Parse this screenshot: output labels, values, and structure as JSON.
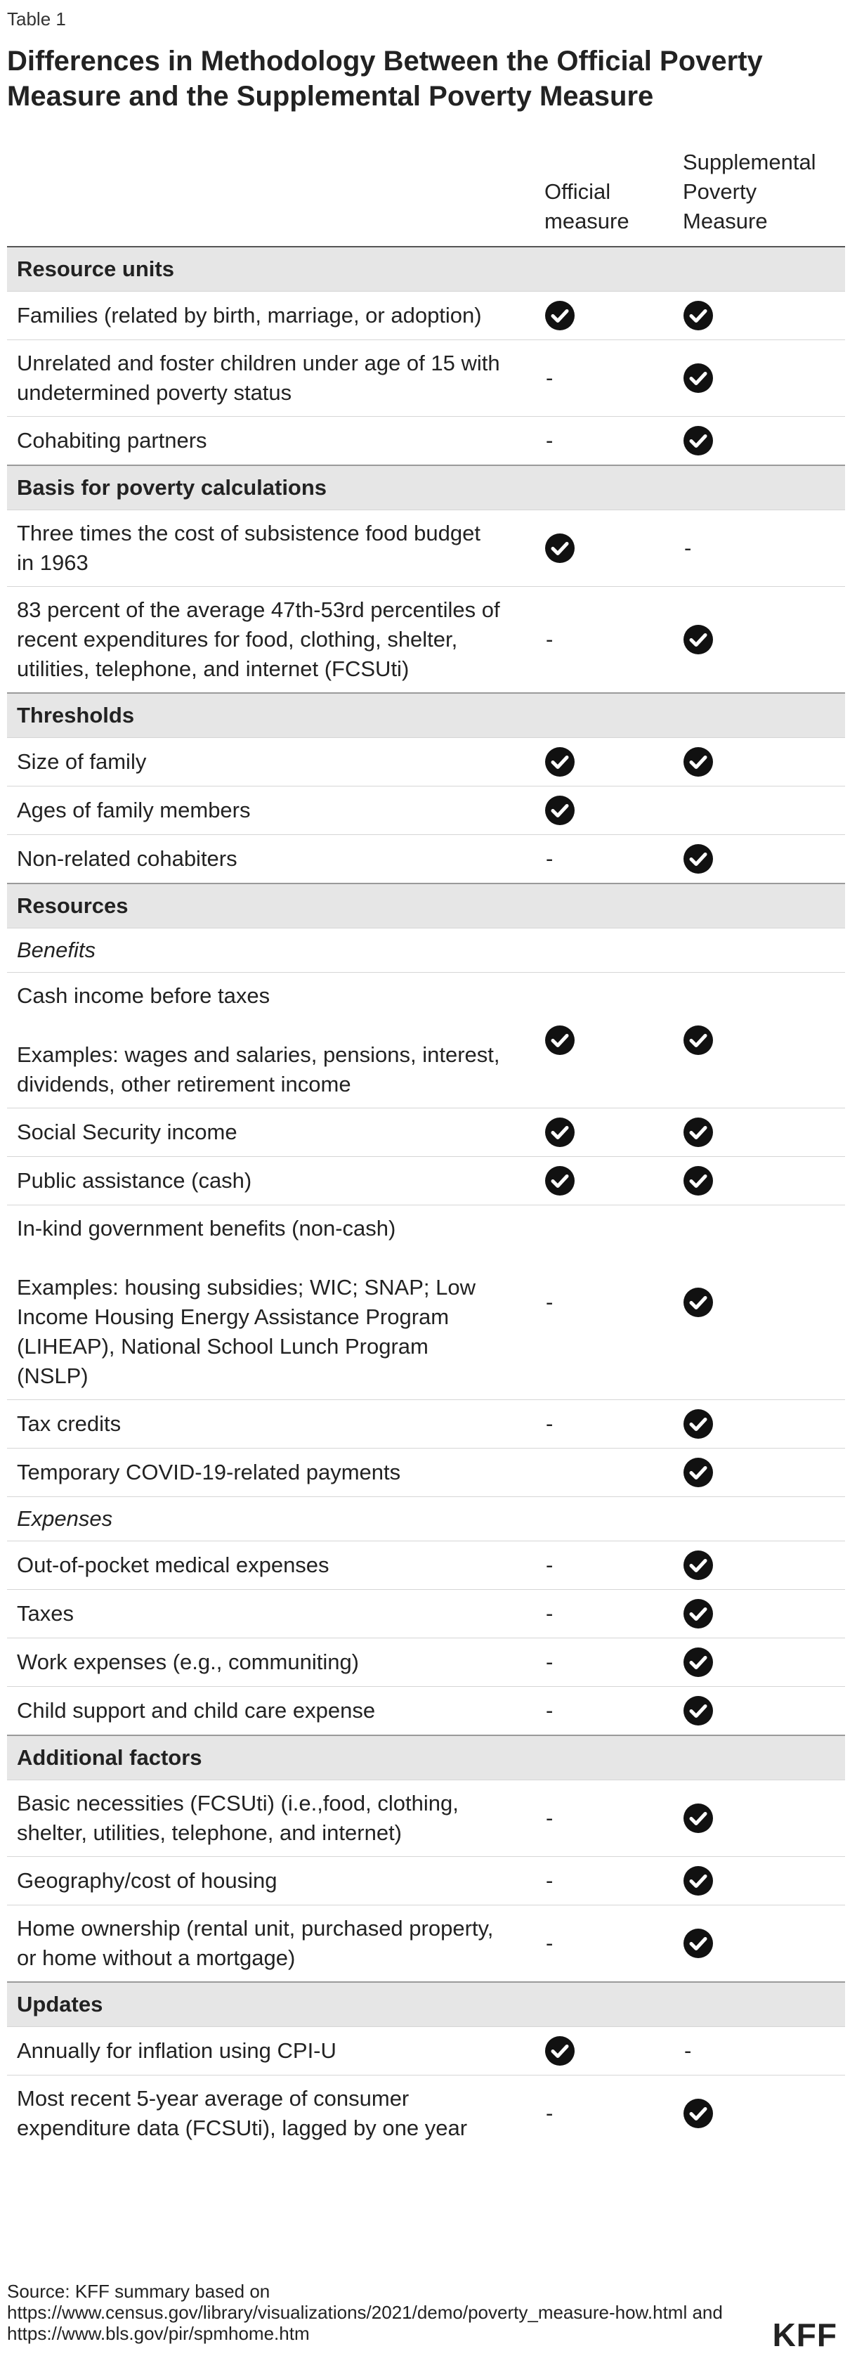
{
  "label": "Table 1",
  "title": "Differences in Methodology Between the Official Poverty Measure and the Supplemental Poverty Measure",
  "table": {
    "columns": [
      "Official measure",
      "Supplemental Poverty Measure"
    ],
    "rows": [
      {
        "section": "Resource units"
      },
      {
        "label": [
          "Families (related by birth, marriage, or adoption)"
        ],
        "cells": [
          true,
          true
        ]
      },
      {
        "label": [
          "Unrelated and foster children under age of 15 with undetermined poverty status"
        ],
        "cells": [
          "-",
          true
        ]
      },
      {
        "label": [
          "Cohabiting partners"
        ],
        "cells": [
          "-",
          true
        ]
      },
      {
        "section": "Basis for poverty calculations"
      },
      {
        "label": [
          "Three times the cost of subsistence food budget in 1963"
        ],
        "cells": [
          true,
          "-"
        ]
      },
      {
        "label": [
          "83 percent of the average 47th-53rd percentiles of recent expenditures for food, clothing, shelter, utilities, telephone, and internet (FCSUti)"
        ],
        "cells": [
          "-",
          true
        ]
      },
      {
        "section": "Thresholds"
      },
      {
        "label": [
          "Size of family"
        ],
        "cells": [
          true,
          true
        ]
      },
      {
        "label": [
          "Ages of family members"
        ],
        "cells": [
          true,
          null
        ]
      },
      {
        "label": [
          "Non-related cohabiters"
        ],
        "cells": [
          "-",
          true
        ]
      },
      {
        "section": "Resources"
      },
      {
        "subsection": "Benefits"
      },
      {
        "label": [
          "Cash income before taxes",
          "Examples: wages and salaries, pensions, interest, dividends, other retirement income"
        ],
        "cells": [
          true,
          true
        ]
      },
      {
        "label": [
          "Social Security income"
        ],
        "cells": [
          true,
          true
        ]
      },
      {
        "label": [
          "Public assistance (cash)"
        ],
        "cells": [
          true,
          true
        ]
      },
      {
        "label": [
          "In-kind government benefits (non-cash)",
          "Examples: housing subsidies; WIC; SNAP; Low Income Housing Energy Assistance Program (LIHEAP), National School Lunch Program (NSLP)"
        ],
        "cells": [
          "-",
          true
        ]
      },
      {
        "label": [
          "Tax credits"
        ],
        "cells": [
          "-",
          true
        ]
      },
      {
        "label": [
          "Temporary COVID-19-related payments"
        ],
        "cells": [
          null,
          true
        ]
      },
      {
        "subsection": "Expenses"
      },
      {
        "label": [
          "Out-of-pocket medical expenses"
        ],
        "cells": [
          "-",
          true
        ]
      },
      {
        "label": [
          "Taxes"
        ],
        "cells": [
          "-",
          true
        ]
      },
      {
        "label": [
          "Work expenses (e.g., communiting)"
        ],
        "cells": [
          "-",
          true
        ]
      },
      {
        "label": [
          "Child support and child care expense"
        ],
        "cells": [
          "-",
          true
        ]
      },
      {
        "section": "Additional factors"
      },
      {
        "label": [
          "Basic necessities (FCSUti) (i.e.,food, clothing, shelter, utilities, telephone, and internet)"
        ],
        "cells": [
          "-",
          true
        ]
      },
      {
        "label": [
          "Geography/cost of housing"
        ],
        "cells": [
          "-",
          true
        ]
      },
      {
        "label": [
          "Home ownership (rental unit, purchased property, or home without a mortgage)"
        ],
        "cells": [
          "-",
          true
        ]
      },
      {
        "section": "Updates"
      },
      {
        "label": [
          "Annually for inflation using CPI-U"
        ],
        "cells": [
          true,
          "-"
        ]
      },
      {
        "label": [
          "Most recent 5-year average of consumer expenditure data (FCSUti), lagged by one year"
        ],
        "cells": [
          "-",
          true
        ]
      }
    ]
  },
  "source": [
    "Source: KFF summary based on",
    "https://www.census.gov/library/visualizations/2021/demo/poverty_measure-how.html and",
    "https://www.bls.gov/pir/spmhome.htm"
  ],
  "logo": "KFF"
}
